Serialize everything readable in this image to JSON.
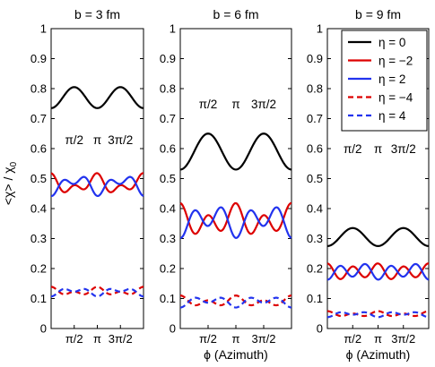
{
  "chart_data": {
    "type": "line",
    "ylabel": "<χ> / χ",
    "ylabel_sub": "0",
    "ylim": [
      0,
      1
    ],
    "y_ticks": [
      "0",
      "0.1",
      "0.2",
      "0.3",
      "0.4",
      "0.5",
      "0.6",
      "0.7",
      "0.8",
      "0.9",
      "1"
    ],
    "xlim": [
      0,
      6.2832
    ],
    "x_ticks": [
      "π/2",
      "π",
      "3π/2"
    ],
    "xlabel": "ϕ (Azimuth)",
    "legend": {
      "placement": "top-right of third panel",
      "entries": [
        {
          "label": "η = 0",
          "color": "#000000",
          "dash": "solid"
        },
        {
          "label": "η = −2",
          "color": "#dd0000",
          "dash": "solid"
        },
        {
          "label": "η = 2",
          "color": "#2233ee",
          "dash": "solid"
        },
        {
          "label": "η = −4",
          "color": "#dd0000",
          "dash": "dashed"
        },
        {
          "label": "η = 4",
          "color": "#2233ee",
          "dash": "dashed"
        }
      ]
    },
    "panels": [
      {
        "title": "b = 3 fm",
        "annotation": [
          "π/2",
          "π",
          "3π/2"
        ],
        "annotation_y": 0.63,
        "show_ylabel": true,
        "show_xlabel": false,
        "series": [
          {
            "legend_index": 0,
            "c": 0.77,
            "a2": -0.035,
            "b2": 0,
            "a4": 0
          },
          {
            "legend_index": 1,
            "c": 0.48,
            "a2": 0.02,
            "b2": -0.005,
            "a4": 0.018
          },
          {
            "legend_index": 2,
            "c": 0.48,
            "a2": -0.02,
            "b2": -0.005,
            "a4": -0.018
          },
          {
            "legend_index": 3,
            "c": 0.123,
            "a2": 0.008,
            "b2": 0,
            "a4": 0.008
          },
          {
            "legend_index": 4,
            "c": 0.123,
            "a2": -0.008,
            "b2": 0,
            "a4": -0.008
          }
        ]
      },
      {
        "title": "b = 6 fm",
        "annotation": [
          "π/2",
          "π",
          "3π/2"
        ],
        "annotation_y": 0.75,
        "show_ylabel": false,
        "show_xlabel": true,
        "series": [
          {
            "legend_index": 0,
            "c": 0.59,
            "a2": -0.06,
            "b2": 0,
            "a4": 0
          },
          {
            "legend_index": 1,
            "c": 0.36,
            "a2": 0.02,
            "b2": -0.005,
            "a4": 0.038
          },
          {
            "legend_index": 2,
            "c": 0.36,
            "a2": -0.02,
            "b2": -0.005,
            "a4": -0.038
          },
          {
            "legend_index": 3,
            "c": 0.09,
            "a2": 0.008,
            "b2": 0,
            "a4": 0.012
          },
          {
            "legend_index": 4,
            "c": 0.09,
            "a2": -0.008,
            "b2": 0,
            "a4": -0.012
          }
        ]
      },
      {
        "title": "b = 9 fm",
        "annotation": [
          "π/2",
          "π",
          "3π/2"
        ],
        "annotation_y": 0.6,
        "show_ylabel": false,
        "show_xlabel": true,
        "series": [
          {
            "legend_index": 0,
            "c": 0.305,
            "a2": -0.03,
            "b2": 0,
            "a4": 0
          },
          {
            "legend_index": 1,
            "c": 0.19,
            "a2": 0.005,
            "b2": -0.003,
            "a4": 0.022
          },
          {
            "legend_index": 2,
            "c": 0.19,
            "a2": -0.005,
            "b2": -0.003,
            "a4": -0.022
          },
          {
            "legend_index": 3,
            "c": 0.048,
            "a2": 0.004,
            "b2": 0,
            "a4": 0.006
          },
          {
            "legend_index": 4,
            "c": 0.048,
            "a2": -0.004,
            "b2": 0,
            "a4": -0.006
          }
        ]
      }
    ]
  }
}
